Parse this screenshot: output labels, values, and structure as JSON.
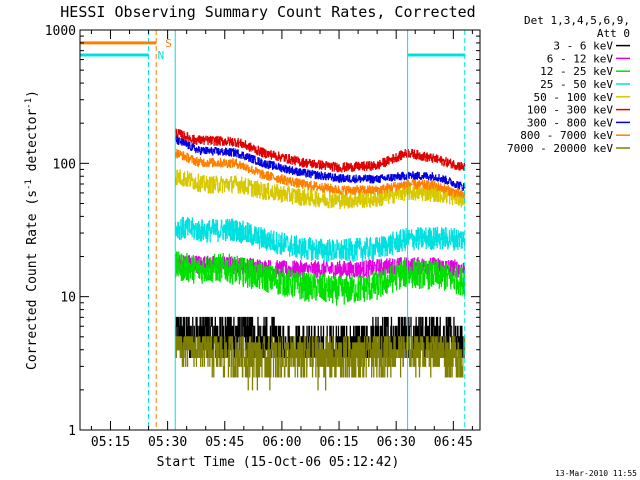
{
  "chart_data": {
    "type": "line",
    "title": "HESSI Observing Summary Count Rates, Corrected",
    "xlabel": "Start Time (15-Oct-06 05:12:42)",
    "ylabel": "Corrected Count Rate (s^-1 detector^-1)",
    "ylabel_main": "Corrected Count Rate (s",
    "ylabel_sup1": "-1",
    "ylabel_mid": " detector",
    "ylabel_sup2": "-1",
    "ylabel_end": ")",
    "xlim": [
      "05:07",
      "06:52"
    ],
    "ylim": [
      1,
      1000
    ],
    "yscale": "log",
    "x_ticks": [
      "05:15",
      "05:30",
      "05:45",
      "06:00",
      "06:15",
      "06:30",
      "06:45"
    ],
    "y_ticks": [
      {
        "value": 1,
        "label": "1"
      },
      {
        "value": 10,
        "label": "10"
      },
      {
        "value": 100,
        "label": "100"
      },
      {
        "value": 1000,
        "label": "1000"
      }
    ],
    "legend_header": [
      "Det 1,3,4,5,6,9,",
      "Att 0"
    ],
    "legend_position": "right",
    "series": [
      {
        "name": "3 - 6 keV",
        "color": "#000000",
        "noise": 1.0,
        "points": [
          [
            "05:32",
            5
          ],
          [
            "05:40",
            5
          ],
          [
            "05:50",
            5
          ],
          [
            "06:00",
            4
          ],
          [
            "06:10",
            4
          ],
          [
            "06:20",
            4
          ],
          [
            "06:30",
            5
          ],
          [
            "06:40",
            5
          ],
          [
            "06:48",
            4
          ]
        ]
      },
      {
        "name": "6 - 12 keV",
        "color": "#e000e0",
        "noise": 0.15,
        "points": [
          [
            "05:32",
            18
          ],
          [
            "05:40",
            17.5
          ],
          [
            "05:50",
            17
          ],
          [
            "06:00",
            16
          ],
          [
            "06:10",
            16
          ],
          [
            "06:20",
            16
          ],
          [
            "06:30",
            17
          ],
          [
            "06:40",
            17
          ],
          [
            "06:48",
            16
          ]
        ]
      },
      {
        "name": "12 - 25 keV",
        "color": "#00e000",
        "noise": 0.25,
        "points": [
          [
            "05:32",
            17
          ],
          [
            "05:38",
            16
          ],
          [
            "05:45",
            16.5
          ],
          [
            "05:55",
            14
          ],
          [
            "06:05",
            12
          ],
          [
            "06:15",
            11
          ],
          [
            "06:25",
            12
          ],
          [
            "06:32",
            15
          ],
          [
            "06:40",
            14.5
          ],
          [
            "06:48",
            13
          ]
        ]
      },
      {
        "name": "25 - 50 keV",
        "color": "#00e0e0",
        "noise": 0.2,
        "points": [
          [
            "05:32",
            33
          ],
          [
            "05:40",
            31
          ],
          [
            "05:47",
            32
          ],
          [
            "05:55",
            27
          ],
          [
            "06:05",
            23
          ],
          [
            "06:15",
            22
          ],
          [
            "06:25",
            23
          ],
          [
            "06:33",
            27
          ],
          [
            "06:40",
            27.5
          ],
          [
            "06:48",
            27
          ]
        ]
      },
      {
        "name": "50 - 100 keV",
        "color": "#d8c800",
        "noise": 0.15,
        "points": [
          [
            "05:32",
            80
          ],
          [
            "05:40",
            69
          ],
          [
            "05:48",
            70
          ],
          [
            "05:55",
            62
          ],
          [
            "06:05",
            56
          ],
          [
            "06:15",
            53
          ],
          [
            "06:25",
            54
          ],
          [
            "06:32",
            61
          ],
          [
            "06:40",
            60
          ],
          [
            "06:48",
            54
          ]
        ]
      },
      {
        "name": "100 - 300 keV",
        "color": "#e00000",
        "noise": 0.08,
        "points": [
          [
            "05:32",
            170
          ],
          [
            "05:37",
            150
          ],
          [
            "05:48",
            145
          ],
          [
            "05:55",
            120
          ],
          [
            "06:05",
            102
          ],
          [
            "06:15",
            93
          ],
          [
            "06:25",
            96
          ],
          [
            "06:33",
            120
          ],
          [
            "06:40",
            108
          ],
          [
            "06:48",
            93
          ]
        ]
      },
      {
        "name": "300 - 800 keV",
        "color": "#0000e0",
        "noise": 0.07,
        "points": [
          [
            "05:32",
            150
          ],
          [
            "05:38",
            125
          ],
          [
            "05:48",
            120
          ],
          [
            "05:55",
            100
          ],
          [
            "06:05",
            85
          ],
          [
            "06:15",
            77
          ],
          [
            "06:25",
            76
          ],
          [
            "06:33",
            81
          ],
          [
            "06:40",
            80
          ],
          [
            "06:48",
            66
          ]
        ]
      },
      {
        "name": "800 - 7000 keV",
        "color": "#ff8000",
        "noise": 0.08,
        "points": [
          [
            "05:32",
            120
          ],
          [
            "05:38",
            102
          ],
          [
            "05:48",
            100
          ],
          [
            "05:55",
            82
          ],
          [
            "06:05",
            70
          ],
          [
            "06:15",
            63
          ],
          [
            "06:25",
            63
          ],
          [
            "06:33",
            70
          ],
          [
            "06:40",
            68
          ],
          [
            "06:48",
            57
          ]
        ]
      },
      {
        "name": "7000 - 20000 keV",
        "color": "#808000",
        "noise": 1.1,
        "points": [
          [
            "05:32",
            4
          ],
          [
            "05:40",
            3.5
          ],
          [
            "05:50",
            3
          ],
          [
            "06:00",
            3
          ],
          [
            "06:10",
            3
          ],
          [
            "06:20",
            3
          ],
          [
            "06:30",
            3.5
          ],
          [
            "06:40",
            3.5
          ],
          [
            "06:48",
            3
          ]
        ]
      }
    ],
    "state_lines": [
      {
        "label": "S",
        "color": "#ff8000",
        "x_start": "05:07",
        "x_end": "05:27",
        "value": 800
      },
      {
        "label": "N",
        "color": "#00e0e0",
        "x_start": "05:07",
        "x_end": "05:25",
        "value": 650
      },
      {
        "label": "",
        "color": "#00e0e0",
        "x_start": "06:33",
        "x_end": "06:48",
        "value": 650
      }
    ],
    "vertical_lines": [
      {
        "at": "05:07",
        "color": "#00e0e0",
        "style": "solid"
      },
      {
        "at": "05:25",
        "color": "#00e0e0",
        "style": "dashed"
      },
      {
        "at": "05:27",
        "color": "#ff8000",
        "style": "dashed"
      },
      {
        "at": "05:32",
        "color": "#00e0e0",
        "style": "solid"
      },
      {
        "at": "06:33",
        "color": "#00e0e0",
        "style": "solid"
      },
      {
        "at": "06:48",
        "color": "#00e0e0",
        "style": "dashed"
      }
    ]
  },
  "footer": {
    "timestamp": "13-Mar-2010 11:55"
  }
}
